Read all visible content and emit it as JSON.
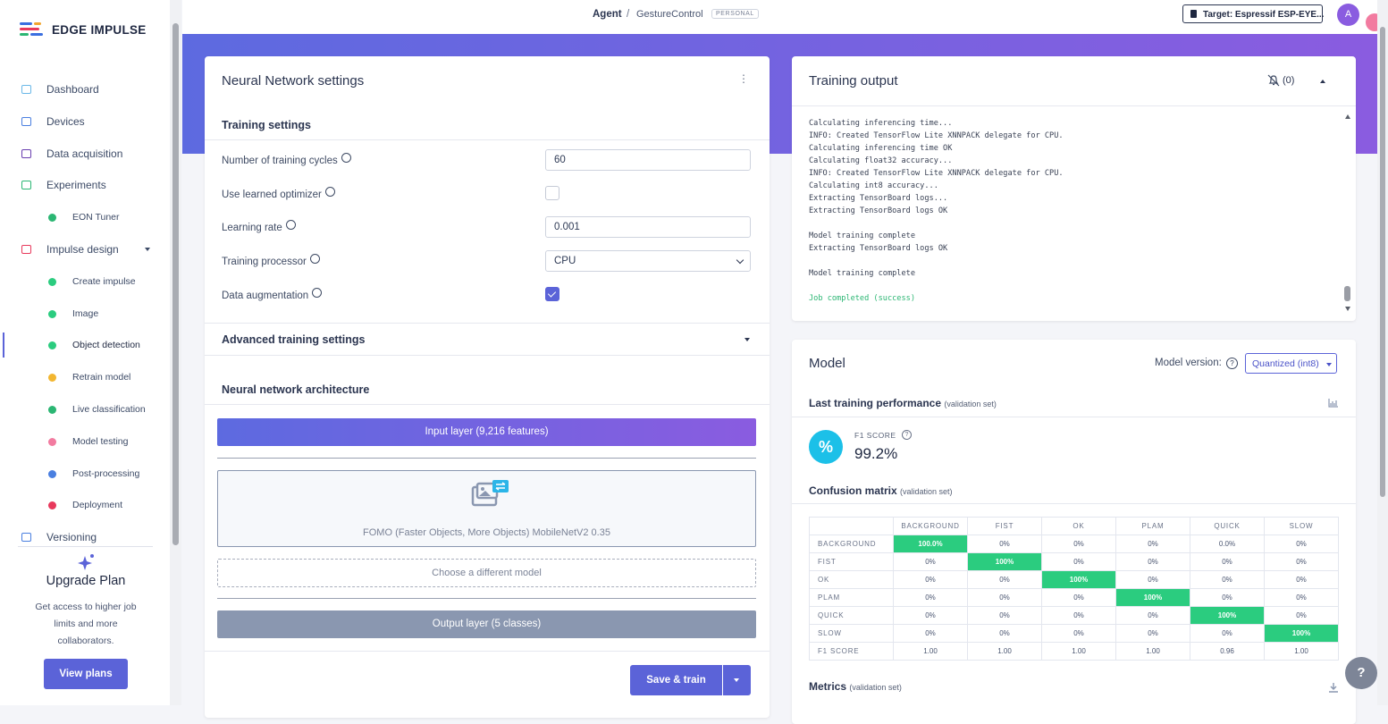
{
  "sidebar": {
    "brand": "EDGE IMPULSE",
    "nav": [
      {
        "label": "Dashboard"
      },
      {
        "label": "Devices"
      },
      {
        "label": "Data acquisition"
      },
      {
        "label": "Experiments",
        "children": [
          {
            "label": "EON Tuner"
          }
        ]
      },
      {
        "label": "Impulse design",
        "children": [
          {
            "label": "Create impulse"
          },
          {
            "label": "Image"
          },
          {
            "label": "Object detection",
            "active": true
          },
          {
            "label": "Retrain model"
          },
          {
            "label": "Live classification"
          },
          {
            "label": "Model testing"
          },
          {
            "label": "Post-processing"
          },
          {
            "label": "Deployment"
          }
        ]
      },
      {
        "label": "Versioning"
      }
    ],
    "upgrade": {
      "title": "Upgrade Plan",
      "text": "Get access to higher job limits and more collaborators.",
      "button": "View plans"
    }
  },
  "topbar": {
    "breadcrumb": [
      "Agent",
      "GestureControl"
    ],
    "separator": "/",
    "badge": "PERSONAL",
    "target": "Target: Espressif ESP-EYE...",
    "avatar": "A"
  },
  "settings": {
    "title": "Neural Network settings",
    "training_title": "Training settings",
    "fields": [
      {
        "label": "Number of training cycles",
        "input": "60"
      },
      {
        "label": "Use learned optimizer",
        "checked": false
      },
      {
        "label": "Learning rate",
        "input": "0.001"
      },
      {
        "label": "Training processor",
        "select": "CPU"
      },
      {
        "label": "Data augmentation",
        "checked": true
      }
    ],
    "advanced": "Advanced training settings",
    "architecture_title": "Neural network architecture",
    "input_layer": "Input layer (9,216 features)",
    "model": "FOMO (Faster Objects, More Objects) MobileNetV2 0.35",
    "choose": "Choose a different model",
    "output_layer": "Output layer (5 classes)",
    "save": "Save & train"
  },
  "training_output": {
    "title": "Training output",
    "notifications": "(0)",
    "log": [
      [
        "Calculating inferencing time...",
        "INFO: Created TensorFlow Lite XNNPACK delegate for CPU.",
        "Calculating inferencing time OK",
        "Calculating float32 accuracy...",
        "INFO: Created TensorFlow Lite XNNPACK delegate for CPU.",
        "Calculating int8 accuracy...",
        "Extracting TensorBoard logs...",
        "Extracting TensorBoard logs OK"
      ],
      [
        "Model training complete",
        "Extracting TensorBoard logs OK"
      ],
      [
        "Model training complete"
      ],
      [
        "Job completed (success)"
      ]
    ]
  },
  "model": {
    "title": "Model",
    "version_label": "Model version:",
    "version": "Quantized (int8)",
    "performance_title": "Last training performance",
    "subset": "(validation set)",
    "f1_label": "F1 SCORE",
    "f1_value": "99.2%",
    "confusion_title": "Confusion matrix",
    "confusion": {
      "columns": [
        "BACKGROUND",
        "FIST",
        "OK",
        "PLAM",
        "QUICK",
        "SLOW"
      ],
      "rows": [
        [
          "BACKGROUND",
          "100.0%",
          "0%",
          "0%",
          "0%",
          "0.0%",
          "0%"
        ],
        [
          "FIST",
          "0%",
          "100%",
          "0%",
          "0%",
          "0%",
          "0%"
        ],
        [
          "OK",
          "0%",
          "0%",
          "100%",
          "0%",
          "0%",
          "0%"
        ],
        [
          "PLAM",
          "0%",
          "0%",
          "0%",
          "100%",
          "0%",
          "0%"
        ],
        [
          "QUICK",
          "0%",
          "0%",
          "0%",
          "0%",
          "100%",
          "0%"
        ],
        [
          "SLOW",
          "0%",
          "0%",
          "0%",
          "0%",
          "0%",
          "100%"
        ],
        [
          "F1 SCORE",
          "1.00",
          "1.00",
          "1.00",
          "1.00",
          "0.96",
          "1.00"
        ]
      ]
    },
    "metrics_title": "Metrics"
  }
}
